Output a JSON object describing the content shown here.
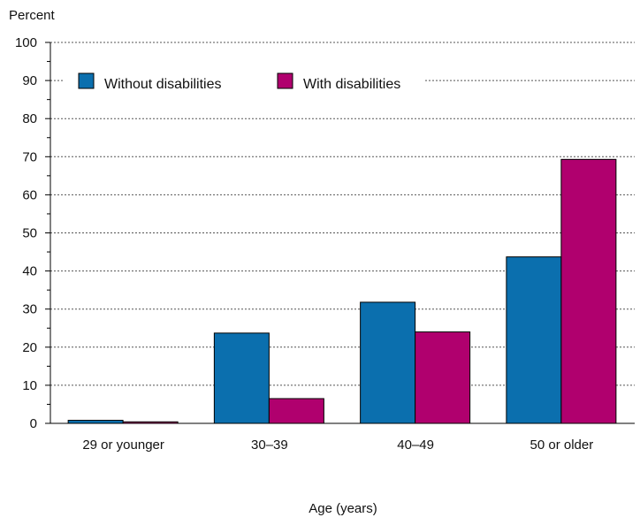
{
  "chart_data": {
    "type": "bar",
    "title": "",
    "ylabel": "Percent",
    "xlabel": "Age (years)",
    "categories": [
      "29 or younger",
      "30–39",
      "40–49",
      "50 or older"
    ],
    "series": [
      {
        "name": "Without disabilities",
        "values": [
          0.8,
          23.7,
          31.8,
          43.7
        ],
        "color": "#0b6fae"
      },
      {
        "name": "With disabilities",
        "values": [
          0.4,
          6.5,
          24.0,
          69.3
        ],
        "color": "#b0006e"
      }
    ],
    "ylim": [
      0,
      100
    ],
    "yticks": [
      0,
      10,
      20,
      30,
      40,
      50,
      60,
      70,
      80,
      90,
      100
    ],
    "grid": true,
    "legend": "top-left"
  }
}
